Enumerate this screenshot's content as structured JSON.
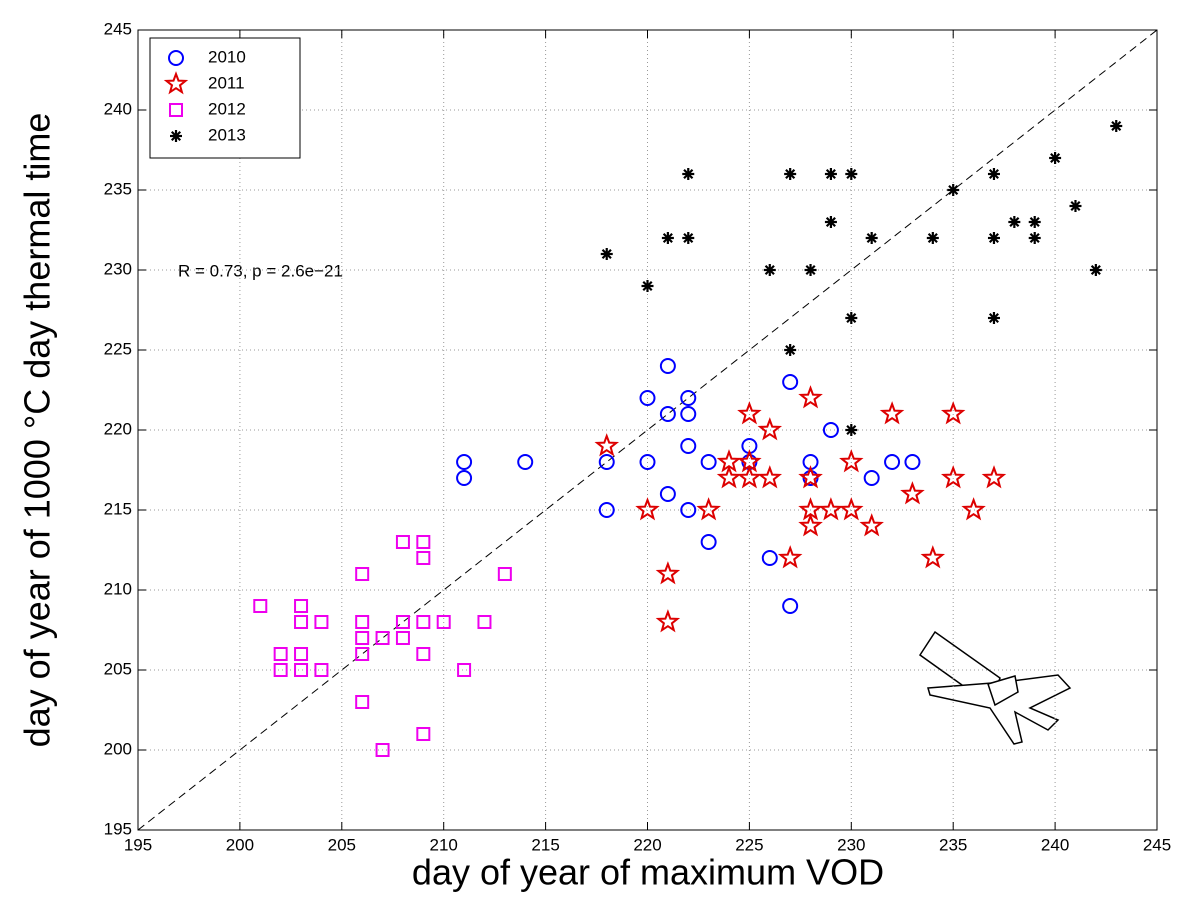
{
  "chart_data": {
    "type": "scatter",
    "xlabel": "day of year of maximum VOD",
    "ylabel": "day of year of 1000 °C day thermal time",
    "annotation": "R = 0.73, p = 2.6e−21",
    "xlim": [
      195,
      245
    ],
    "ylim": [
      195,
      245
    ],
    "xticks": [
      195,
      200,
      205,
      210,
      215,
      220,
      225,
      230,
      235,
      240,
      245
    ],
    "yticks": [
      195,
      200,
      205,
      210,
      215,
      220,
      225,
      230,
      235,
      240,
      245
    ],
    "grid": true,
    "legend": "upper left",
    "identity_line": true,
    "series": [
      {
        "name": "2010",
        "color": "#0000ff",
        "marker": "circle",
        "x": [
          211,
          211,
          214,
          218,
          218,
          220,
          220,
          221,
          221,
          221,
          222,
          222,
          222,
          222,
          223,
          223,
          225,
          225,
          226,
          227,
          227,
          228,
          228,
          229,
          231,
          232,
          233
        ],
        "y": [
          218,
          217,
          218,
          218,
          215,
          222,
          218,
          224,
          221,
          216,
          222,
          221,
          219,
          215,
          218,
          213,
          219,
          218,
          212,
          223,
          209,
          218,
          217,
          220,
          217,
          218,
          218
        ]
      },
      {
        "name": "2011",
        "color": "#dd0000",
        "marker": "star",
        "x": [
          218,
          220,
          221,
          221,
          223,
          224,
          224,
          225,
          225,
          225,
          226,
          226,
          227,
          228,
          228,
          228,
          228,
          229,
          230,
          230,
          231,
          232,
          233,
          234,
          235,
          235,
          236,
          237
        ],
        "y": [
          219,
          215,
          211,
          208,
          215,
          218,
          217,
          221,
          218,
          217,
          220,
          217,
          212,
          222,
          217,
          215,
          214,
          215,
          218,
          215,
          214,
          221,
          216,
          212,
          221,
          217,
          215,
          217
        ]
      },
      {
        "name": "2012",
        "color": "#ee00ee",
        "marker": "square",
        "x": [
          201,
          202,
          202,
          203,
          203,
          203,
          203,
          204,
          204,
          206,
          206,
          206,
          206,
          206,
          207,
          207,
          208,
          208,
          208,
          209,
          209,
          209,
          209,
          209,
          210,
          211,
          212,
          213
        ],
        "y": [
          209,
          206,
          205,
          209,
          208,
          206,
          205,
          208,
          205,
          211,
          208,
          207,
          206,
          203,
          207,
          200,
          213,
          208,
          207,
          213,
          212,
          208,
          206,
          201,
          208,
          205,
          208,
          211
        ]
      },
      {
        "name": "2013",
        "color": "#000000",
        "marker": "asterisk",
        "x": [
          218,
          220,
          221,
          222,
          222,
          226,
          227,
          227,
          228,
          229,
          229,
          230,
          230,
          230,
          231,
          234,
          235,
          237,
          237,
          237,
          238,
          239,
          239,
          240,
          241,
          242,
          243
        ],
        "y": [
          231,
          229,
          232,
          236,
          232,
          230,
          236,
          225,
          230,
          236,
          233,
          236,
          227,
          220,
          232,
          232,
          235,
          236,
          232,
          227,
          233,
          233,
          232,
          237,
          234,
          230,
          239
        ]
      }
    ]
  }
}
